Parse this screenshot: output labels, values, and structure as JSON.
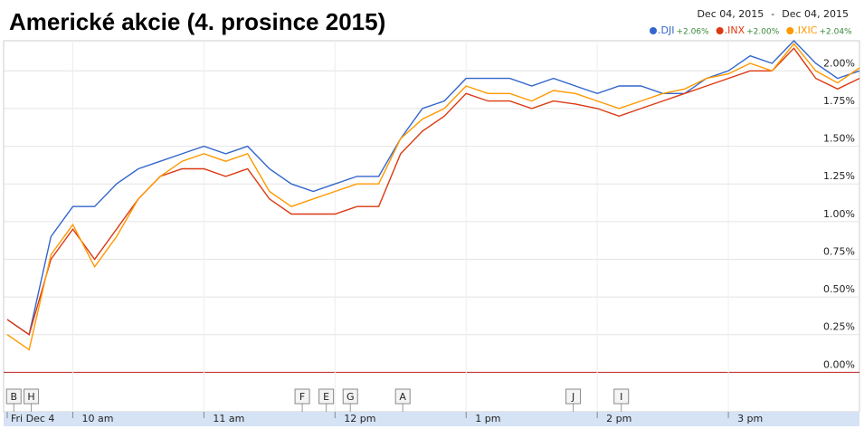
{
  "chart_data": {
    "type": "line",
    "title": "Americké akcie (4. prosince 2015)",
    "date_range": [
      "Dec 04, 2015",
      "Dec 04, 2015"
    ],
    "date_range_separator": "-",
    "x": [
      570,
      580,
      590,
      600,
      610,
      620,
      630,
      640,
      650,
      660,
      670,
      680,
      690,
      700,
      710,
      720,
      730,
      740,
      750,
      760,
      770,
      780,
      790,
      800,
      810,
      820,
      830,
      840,
      850,
      860,
      870,
      880,
      890,
      900,
      910,
      920,
      930,
      940,
      950,
      960
    ],
    "series": [
      {
        "name": ".DJI",
        "change": "+2.06%",
        "color": "#3366cc",
        "values": [
          0.35,
          0.25,
          0.9,
          1.1,
          1.1,
          1.25,
          1.35,
          1.4,
          1.45,
          1.5,
          1.45,
          1.5,
          1.35,
          1.25,
          1.2,
          1.25,
          1.3,
          1.3,
          1.55,
          1.75,
          1.8,
          1.95,
          1.95,
          1.95,
          1.9,
          1.95,
          1.9,
          1.85,
          1.9,
          1.9,
          1.85,
          1.85,
          1.95,
          2.0,
          2.1,
          2.05,
          2.2,
          2.05,
          1.95,
          2.0
        ]
      },
      {
        "name": ".INX",
        "change": "+2.00%",
        "color": "#dc3912",
        "values": [
          0.35,
          0.25,
          0.75,
          0.95,
          0.75,
          0.95,
          1.15,
          1.3,
          1.35,
          1.35,
          1.3,
          1.35,
          1.15,
          1.05,
          1.05,
          1.05,
          1.1,
          1.1,
          1.45,
          1.6,
          1.7,
          1.85,
          1.8,
          1.8,
          1.75,
          1.8,
          1.78,
          1.75,
          1.7,
          1.75,
          1.8,
          1.85,
          1.9,
          1.95,
          2.0,
          2.0,
          2.15,
          1.95,
          1.88,
          1.95
        ]
      },
      {
        "name": ".IXIC",
        "change": "+2.04%",
        "color": "#ff9900",
        "values": [
          0.25,
          0.15,
          0.78,
          0.98,
          0.7,
          0.9,
          1.15,
          1.3,
          1.4,
          1.45,
          1.4,
          1.45,
          1.2,
          1.1,
          1.15,
          1.2,
          1.25,
          1.25,
          1.55,
          1.68,
          1.75,
          1.9,
          1.85,
          1.85,
          1.8,
          1.87,
          1.85,
          1.8,
          1.75,
          1.8,
          1.85,
          1.88,
          1.95,
          1.98,
          2.05,
          2.0,
          2.18,
          2.0,
          1.92,
          2.02
        ]
      }
    ],
    "xlim": [
      570,
      960
    ],
    "xticks": [
      {
        "value": 570,
        "label": "Fri Dec 4"
      },
      {
        "value": 600,
        "label": "10 am"
      },
      {
        "value": 660,
        "label": "11 am"
      },
      {
        "value": 720,
        "label": "12 pm"
      },
      {
        "value": 780,
        "label": "1 pm"
      },
      {
        "value": 840,
        "label": "2 pm"
      },
      {
        "value": 900,
        "label": "3 pm"
      }
    ],
    "ylim": [
      -0.1,
      2.2
    ],
    "yticks": [
      {
        "value": 0,
        "label": "0.00%"
      },
      {
        "value": 0.25,
        "label": "0.25%"
      },
      {
        "value": 0.5,
        "label": "0.50%"
      },
      {
        "value": 0.75,
        "label": "0.75%"
      },
      {
        "value": 1,
        "label": "1.00%"
      },
      {
        "value": 1.25,
        "label": "1.25%"
      },
      {
        "value": 1.5,
        "label": "1.50%"
      },
      {
        "value": 1.75,
        "label": "1.75%"
      },
      {
        "value": 2,
        "label": "2.00%"
      }
    ],
    "grid": true,
    "annotations": [
      {
        "label": "B",
        "x": 573
      },
      {
        "label": "H",
        "x": 581
      },
      {
        "label": "F",
        "x": 705
      },
      {
        "label": "E",
        "x": 716
      },
      {
        "label": "G",
        "x": 727
      },
      {
        "label": "A",
        "x": 751
      },
      {
        "label": "J",
        "x": 829
      },
      {
        "label": "I",
        "x": 851
      }
    ]
  }
}
